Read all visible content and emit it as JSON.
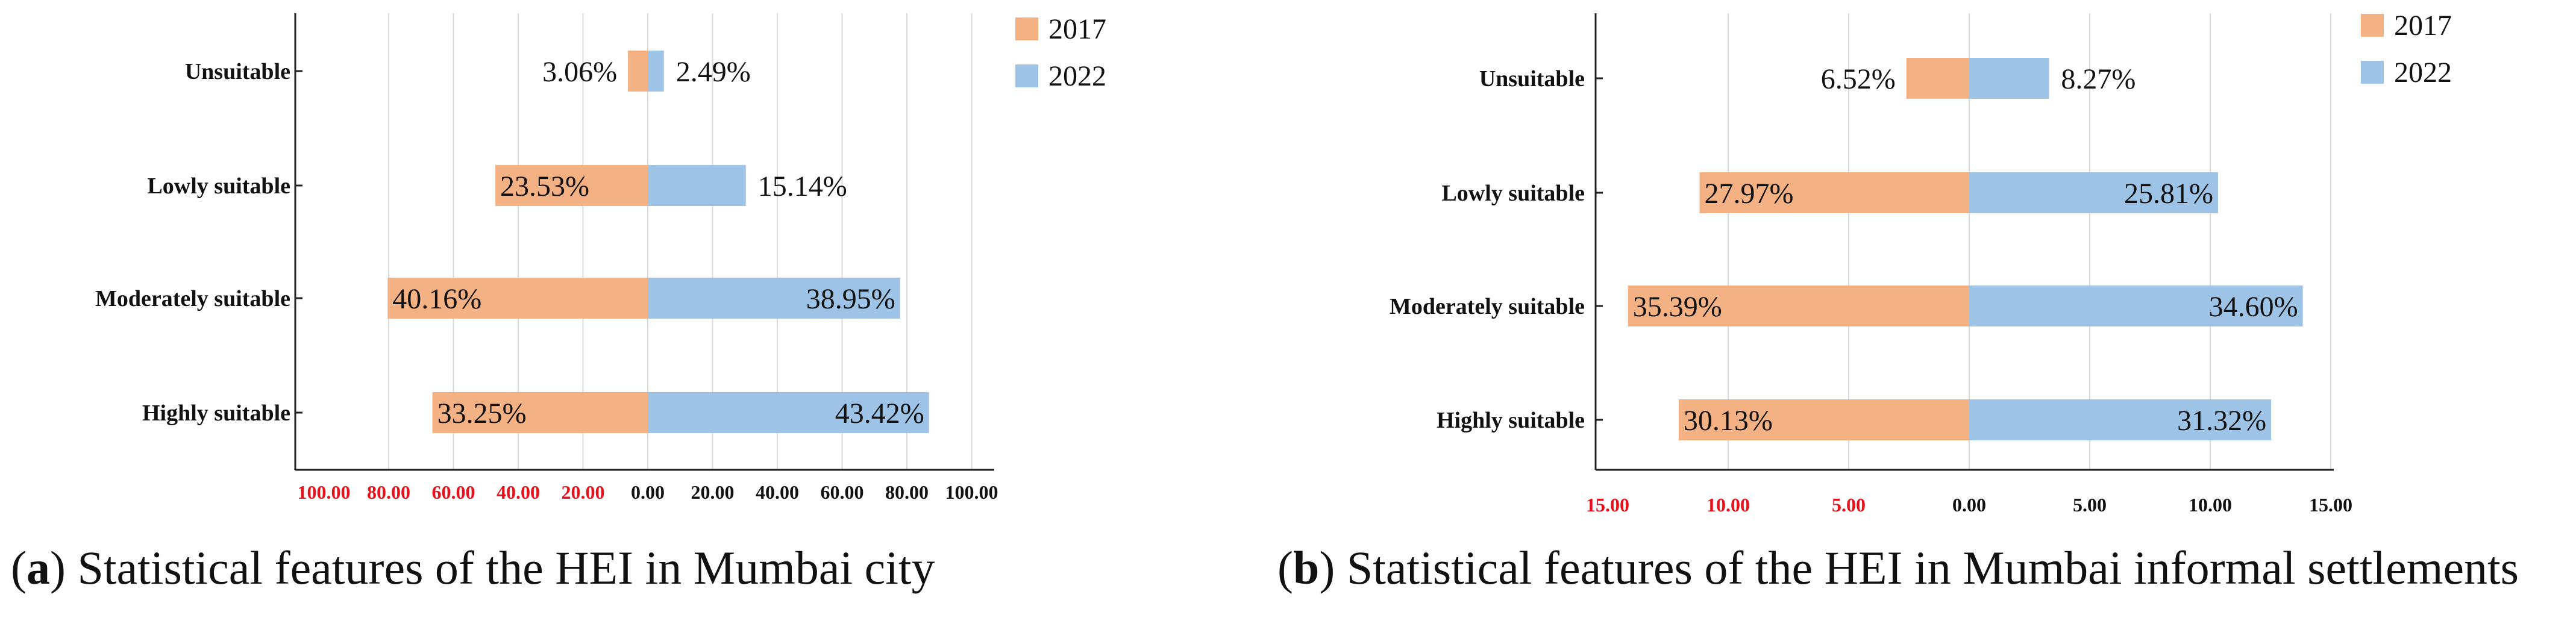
{
  "colors": {
    "series_2017": "#f4b183",
    "series_2022": "#9dc3e6",
    "negative_tick": "#e8101a",
    "positive_tick": "#111111",
    "grid": "#d9d9d9",
    "axis": "#222222"
  },
  "captions": {
    "a": {
      "letter": "a",
      "text": " Statistical features of the HEI in Mumbai city"
    },
    "b": {
      "letter": "b",
      "text": " Statistical features of the HEI in Mumbai informal settlements"
    }
  },
  "chart_data": [
    {
      "type": "bar",
      "orientation": "horizontal-diverging",
      "categories": [
        "Unsuitable",
        "Lowly suitable",
        "Moderately suitable",
        "Highly suitable"
      ],
      "series": [
        {
          "name": "2017",
          "direction": "left",
          "values": [
            3.06,
            23.53,
            40.16,
            33.25
          ],
          "labels": [
            "3.06%",
            "23.53%",
            "40.16%",
            "33.25%"
          ]
        },
        {
          "name": "2022",
          "direction": "right",
          "values": [
            2.49,
            15.14,
            38.95,
            43.42
          ],
          "labels": [
            "2.49%",
            "15.14%",
            "38.95%",
            "43.42%"
          ]
        }
      ],
      "x_ticks": [
        "100.00",
        "80.00",
        "60.00",
        "40.00",
        "20.00",
        "0.00",
        "20.00",
        "40.00",
        "60.00",
        "80.00",
        "100.00"
      ],
      "xlim": [
        -100,
        100
      ],
      "grid": true,
      "legend_position": "top-right",
      "notes": "Bar lengths are drawn at roughly twice the labeled percentage on the axis scale."
    },
    {
      "type": "bar",
      "orientation": "horizontal-diverging",
      "categories": [
        "Unsuitable",
        "Lowly suitable",
        "Moderately suitable",
        "Highly suitable"
      ],
      "series": [
        {
          "name": "2017",
          "direction": "left",
          "values": [
            6.52,
            27.97,
            35.39,
            30.13
          ],
          "labels": [
            "6.52%",
            "27.97%",
            "35.39%",
            "30.13%"
          ]
        },
        {
          "name": "2022",
          "direction": "right",
          "values": [
            8.27,
            25.81,
            34.6,
            31.32
          ],
          "labels": [
            "8.27%",
            "25.81%",
            "34.60%",
            "31.32%"
          ]
        }
      ],
      "x_ticks": [
        "15.00",
        "10.00",
        "5.00",
        "0.00",
        "5.00",
        "10.00",
        "15.00"
      ],
      "xlim": [
        -15,
        15
      ],
      "grid": true,
      "legend_position": "top-right",
      "notes": "Bar lengths are drawn at roughly 0.4 times the labeled percentage on the axis scale."
    }
  ]
}
